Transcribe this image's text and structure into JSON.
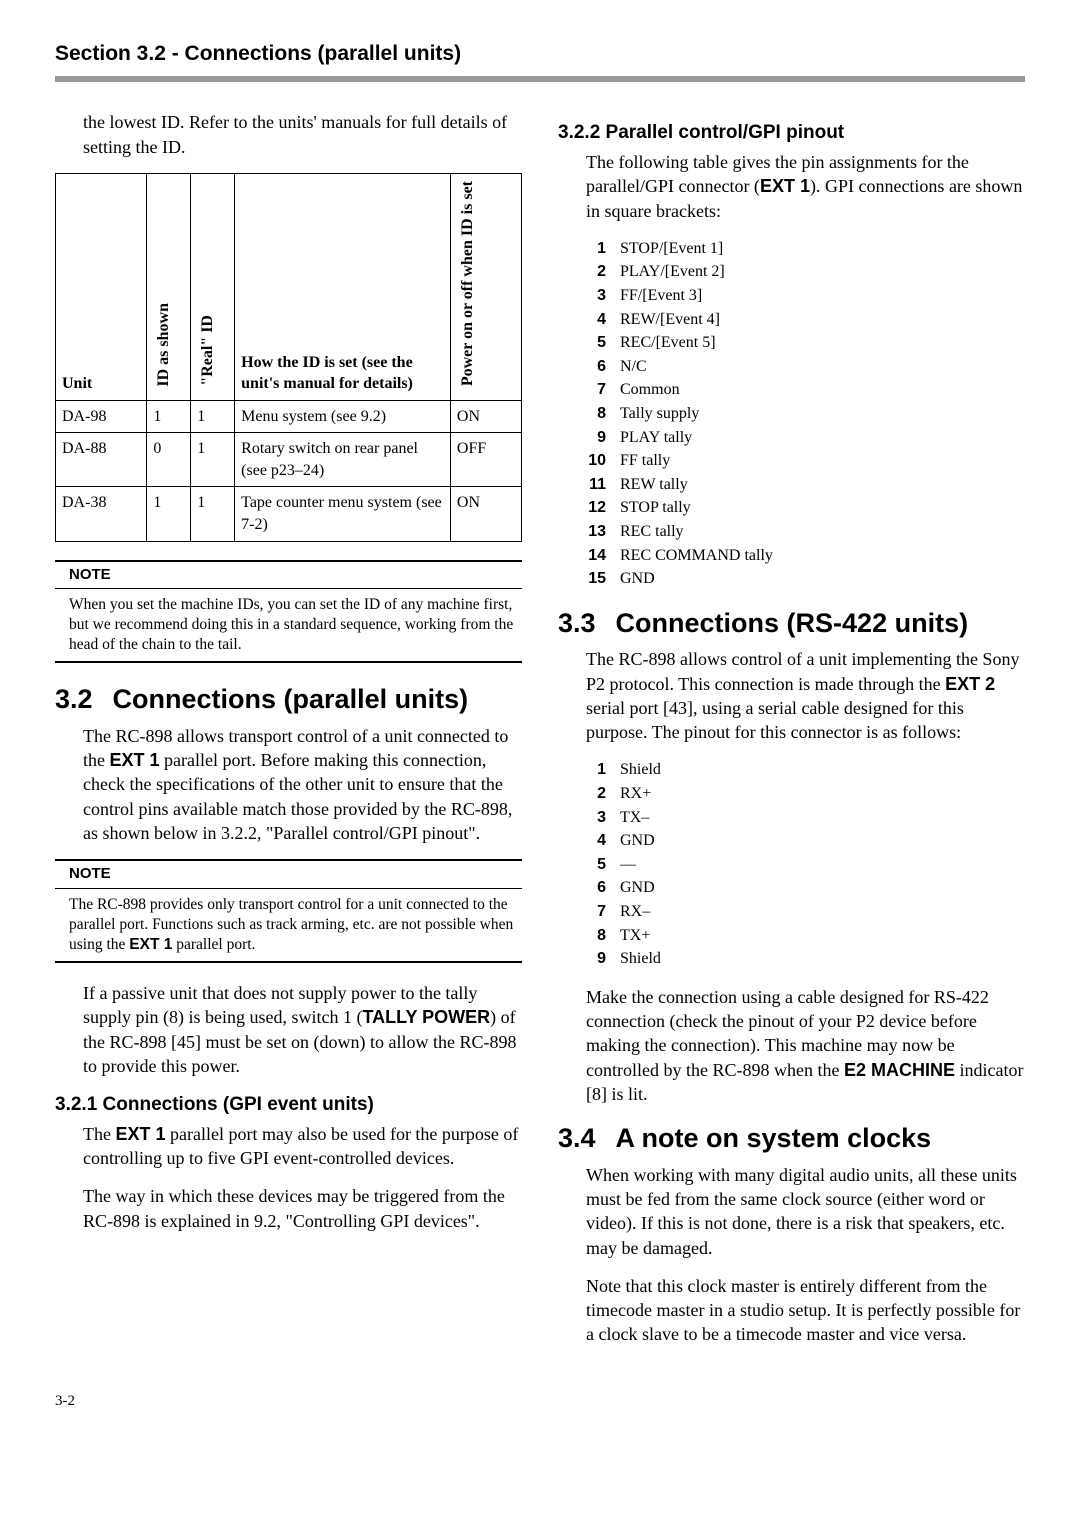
{
  "header": "Section 3.2 - Connections (parallel units)",
  "left": {
    "intro": "the lowest ID. Refer to the units' manuals for full details of setting the ID.",
    "table": {
      "headers": {
        "unit": "Unit",
        "id_shown": "ID as shown",
        "real_id": "\"Real\" ID",
        "how": "How the ID is set (see the unit's manual for details)",
        "power": "Power on or off when ID is set"
      },
      "rows": [
        {
          "unit": "DA-98",
          "id_shown": "1",
          "real_id": "1",
          "how": "Menu system (see 9.2)",
          "power": "ON"
        },
        {
          "unit": "DA-88",
          "id_shown": "0",
          "real_id": "1",
          "how": "Rotary switch on rear panel (see p23–24)",
          "power": "OFF"
        },
        {
          "unit": "DA-38",
          "id_shown": "1",
          "real_id": "1",
          "how": "Tape counter menu system (see 7-2)",
          "power": "ON"
        }
      ]
    },
    "note1_label": "NOTE",
    "note1_body": "When you set the machine IDs, you can set the ID of any machine first, but we recommend doing this in a standard sequence, working from the head of the chain to the tail.",
    "h32_num": "3.2",
    "h32_title": "Connections (parallel units)",
    "p32_1a": "The RC-898 allows transport control of a unit connected to the ",
    "p32_1b": "EXT 1",
    "p32_1c": " parallel port. Before making this connection, check the specifications of the other unit to ensure that the control pins available match those provided by the RC-898, as shown below in 3.2.2, \"Parallel control/GPI pinout\".",
    "note2_label": "NOTE",
    "note2_body_a": "The RC-898 provides only transport control for a unit connected to the parallel port. Functions such as track arming, etc. are not possible when using the ",
    "note2_body_b": "EXT 1",
    "note2_body_c": " parallel port.",
    "p32_tally_a": "If a passive unit that does not supply power to the tally supply pin (8) is being used, switch 1 (",
    "p32_tally_b": "TALLY POWER",
    "p32_tally_c": ") of the RC-898 [45] must be set on (down) to allow the RC-898 to provide this power.",
    "h321": "3.2.1  Connections (GPI event units)",
    "p321_1a": "The ",
    "p321_1b": "EXT 1",
    "p321_1c": " parallel port may also be used for the purpose of controlling up to five GPI event-controlled devices.",
    "p321_2": "The way in which these devices may be triggered from the RC-898 is explained in 9.2, \"Controlling GPI devices\"."
  },
  "right": {
    "h322": "3.2.2  Parallel control/GPI pinout",
    "p322_a": "The following table gives the pin assignments for the parallel/GPI connector (",
    "p322_b": "EXT 1",
    "p322_c": "). GPI connections are shown in square brackets:",
    "pins322": [
      {
        "n": "1",
        "t": "STOP/[Event 1]"
      },
      {
        "n": "2",
        "t": "PLAY/[Event 2]"
      },
      {
        "n": "3",
        "t": "FF/[Event 3]"
      },
      {
        "n": "4",
        "t": "REW/[Event 4]"
      },
      {
        "n": "5",
        "t": "REC/[Event 5]"
      },
      {
        "n": "6",
        "t": "N/C"
      },
      {
        "n": "7",
        "t": "Common"
      },
      {
        "n": "8",
        "t": "Tally supply"
      },
      {
        "n": "9",
        "t": "PLAY tally"
      },
      {
        "n": "10",
        "t": "FF tally"
      },
      {
        "n": "11",
        "t": "REW tally"
      },
      {
        "n": "12",
        "t": "STOP tally"
      },
      {
        "n": "13",
        "t": "REC tally"
      },
      {
        "n": "14",
        "t": "REC COMMAND tally"
      },
      {
        "n": "15",
        "t": "GND"
      }
    ],
    "h33_num": "3.3",
    "h33_title": "Connections (RS-422 units)",
    "p33_1a": "The RC-898 allows control of a unit implementing the Sony P2 protocol. This connection is made through the ",
    "p33_1b": "EXT 2",
    "p33_1c": " serial port [43], using a serial cable designed for this purpose. The pinout for this connector is as follows:",
    "pins33": [
      {
        "n": "1",
        "t": "Shield"
      },
      {
        "n": "2",
        "t": "RX+"
      },
      {
        "n": "3",
        "t": "TX–"
      },
      {
        "n": "4",
        "t": "GND"
      },
      {
        "n": "5",
        "t": "—"
      },
      {
        "n": "6",
        "t": "GND"
      },
      {
        "n": "7",
        "t": "RX–"
      },
      {
        "n": "8",
        "t": "TX+"
      },
      {
        "n": "9",
        "t": "Shield"
      }
    ],
    "p33_2a": "Make the connection using a cable designed for RS-422 connection (check the pinout of your P2 device before making the connection). This machine may now be controlled by the RC-898 when the ",
    "p33_2b": "E2 MACHINE",
    "p33_2c": " indicator [8] is lit.",
    "h34_num": "3.4",
    "h34_title": "A note on system clocks",
    "p34_1": "When working with many digital audio units, all these units must be fed from the same clock source (either word or video). If this is not done, there is a risk that speakers, etc. may be damaged.",
    "p34_2": "Note that this clock master is entirely different from the timecode master in a studio setup. It is perfectly possible for a clock slave to be a timecode master and vice versa."
  },
  "page_number": "3-2"
}
